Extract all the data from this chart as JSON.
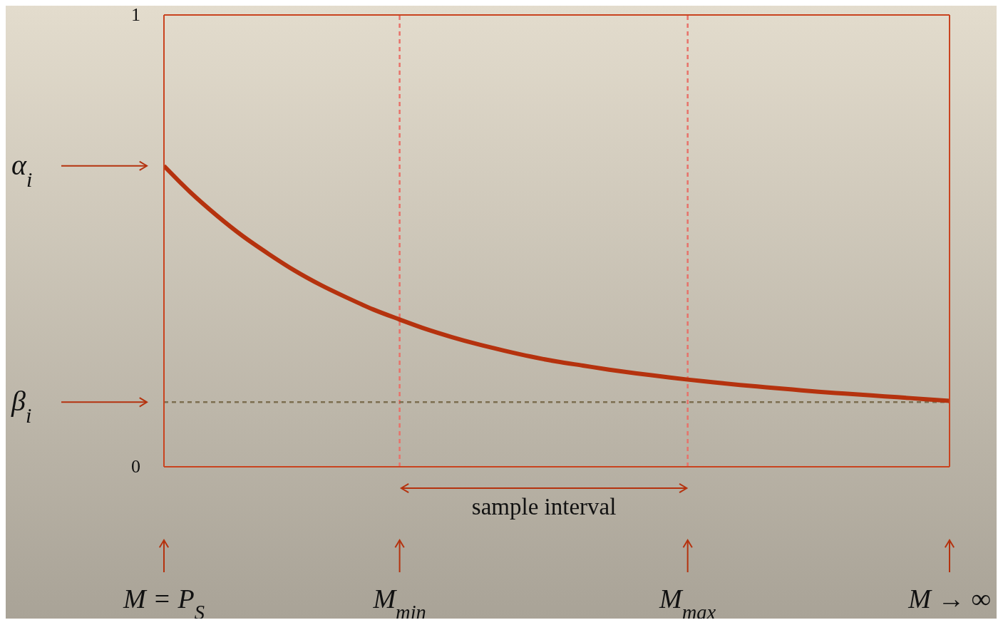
{
  "chart_data": {
    "type": "line",
    "categories": [
      "M = P$_{S}$",
      null,
      null,
      null,
      null,
      null,
      null,
      null,
      null,
      "M$_{min}$",
      null,
      null,
      null,
      null,
      null,
      null,
      null,
      null,
      null,
      null,
      "M$_{max}$",
      null,
      null,
      null,
      null,
      null,
      null,
      null,
      null,
      null,
      "M → ∞"
    ],
    "series": [
      {
        "color": "#b5320e",
        "values": [
          0.666,
          0.608,
          0.557,
          0.511,
          0.471,
          0.434,
          0.402,
          0.374,
          0.348,
          0.326,
          0.305,
          0.287,
          0.271,
          0.257,
          0.244,
          0.233,
          0.224,
          0.215,
          0.207,
          0.2,
          0.193,
          0.187,
          0.181,
          0.176,
          0.171,
          0.166,
          0.162,
          0.158,
          0.154,
          0.15,
          0.146
        ]
      }
    ],
    "ylim": [
      0,
      1
    ],
    "yticks": [
      0,
      1
    ],
    "ref_lines": [
      {
        "axis": "x",
        "value": "M$_{min}$",
        "label": null,
        "color": "#e8726a",
        "line_style": "dashed"
      },
      {
        "axis": "x",
        "value": "M$_{max}$",
        "label": null,
        "color": "#e8726a",
        "line_style": "dashed"
      },
      {
        "axis": "y",
        "value": 0.143,
        "label": null,
        "color": "#7d6e50",
        "line_style": "dashed"
      }
    ],
    "annotations": [
      "sample interval",
      "α$_{i}$",
      "β$_{i}$"
    ],
    "grid": false,
    "legend": false,
    "marker": "none",
    "line_style": "solid"
  }
}
